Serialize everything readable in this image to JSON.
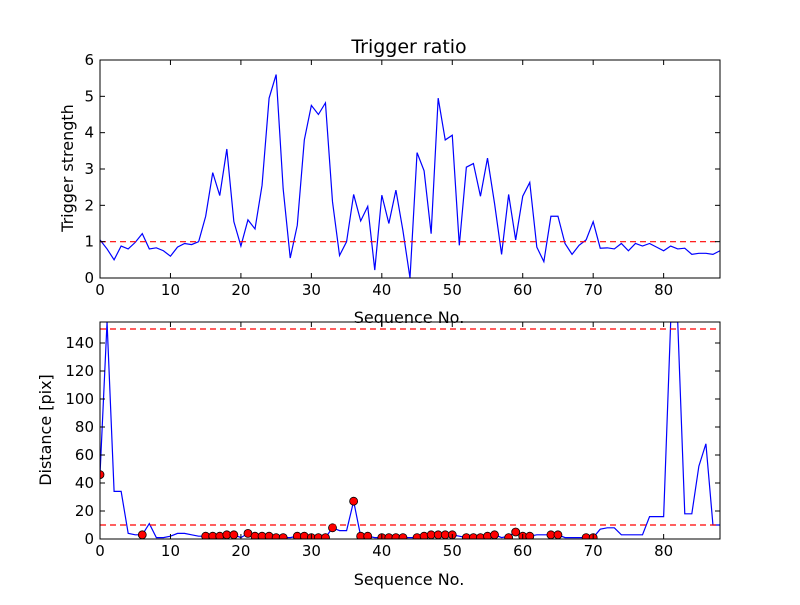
{
  "chart_data": [
    {
      "type": "line",
      "title": "Trigger ratio",
      "xlabel": "Sequence No.",
      "ylabel": "Trigger strength",
      "xlim": [
        0,
        88
      ],
      "ylim": [
        0,
        6
      ],
      "xticks": [
        0,
        10,
        20,
        30,
        40,
        50,
        60,
        70,
        80
      ],
      "yticks": [
        0,
        1,
        2,
        3,
        4,
        5,
        6
      ],
      "grid": false,
      "series": [
        {
          "color": "#0000ff",
          "x": [
            0,
            1,
            2,
            3,
            4,
            5,
            6,
            7,
            8,
            9,
            10,
            11,
            12,
            13,
            14,
            15,
            16,
            17,
            18,
            19,
            20,
            21,
            22,
            23,
            24,
            25,
            26,
            27,
            28,
            29,
            30,
            31,
            32,
            33,
            34,
            35,
            36,
            37,
            38,
            39,
            40,
            41,
            42,
            43,
            44,
            45,
            46,
            47,
            48,
            49,
            50,
            51,
            52,
            53,
            54,
            55,
            56,
            57,
            58,
            59,
            60,
            61,
            62,
            63,
            64,
            65,
            66,
            67,
            68,
            69,
            70,
            71,
            72,
            73,
            74,
            75,
            76,
            77,
            78,
            79,
            80,
            81,
            82,
            83,
            84,
            85,
            86,
            87,
            88
          ],
          "y": [
            1.05,
            0.8,
            0.5,
            0.88,
            0.8,
            0.98,
            1.22,
            0.8,
            0.83,
            0.75,
            0.6,
            0.85,
            0.95,
            0.92,
            1.0,
            1.7,
            2.9,
            2.27,
            3.55,
            1.55,
            0.88,
            1.6,
            1.35,
            2.55,
            4.95,
            5.6,
            2.45,
            0.55,
            1.45,
            3.8,
            4.75,
            4.5,
            4.82,
            2.1,
            0.62,
            1.0,
            2.3,
            1.57,
            1.97,
            0.22,
            2.28,
            1.5,
            2.42,
            1.3,
            0.0,
            3.45,
            2.95,
            1.22,
            4.95,
            3.8,
            3.93,
            0.9,
            3.05,
            3.15,
            2.25,
            3.3,
            2.05,
            0.65,
            2.3,
            1.05,
            2.25,
            2.63,
            0.85,
            0.45,
            1.7,
            1.7,
            0.95,
            0.65,
            0.9,
            1.05,
            1.55,
            0.82,
            0.83,
            0.8,
            0.95,
            0.75,
            0.95,
            0.88,
            0.95,
            0.85,
            0.75,
            0.88,
            0.8,
            0.82,
            0.65,
            0.68,
            0.68,
            0.65,
            0.75
          ]
        }
      ],
      "hlines": [
        {
          "y": 1.0,
          "color": "#ff0000",
          "style": "dashed"
        }
      ]
    },
    {
      "type": "line",
      "title": "",
      "xlabel": "Sequence No.",
      "ylabel": "Distance [pix]",
      "xlim": [
        0,
        88
      ],
      "ylim": [
        0,
        155
      ],
      "xticks": [
        0,
        10,
        20,
        30,
        40,
        50,
        60,
        70,
        80
      ],
      "yticks": [
        0,
        20,
        40,
        60,
        80,
        100,
        120,
        140
      ],
      "grid": false,
      "series": [
        {
          "color": "#0000ff",
          "x": [
            0,
            1,
            2,
            3,
            4,
            5,
            6,
            7,
            8,
            9,
            10,
            11,
            12,
            13,
            14,
            15,
            16,
            17,
            18,
            19,
            20,
            21,
            22,
            23,
            24,
            25,
            26,
            27,
            28,
            29,
            30,
            31,
            32,
            33,
            34,
            35,
            36,
            37,
            38,
            39,
            40,
            41,
            42,
            43,
            44,
            45,
            46,
            47,
            48,
            49,
            50,
            51,
            52,
            53,
            54,
            55,
            56,
            57,
            58,
            59,
            60,
            61,
            62,
            63,
            64,
            65,
            66,
            67,
            68,
            69,
            70,
            71,
            72,
            73,
            74,
            75,
            76,
            77,
            78,
            79,
            80,
            81,
            82,
            83,
            84,
            85,
            86,
            87,
            88
          ],
          "y": [
            46,
            155,
            34,
            34,
            4,
            3,
            3,
            11,
            1,
            1,
            2,
            4,
            4,
            3,
            2,
            2,
            2,
            3,
            3,
            3,
            1,
            4,
            2,
            2,
            2,
            1,
            1,
            1,
            2,
            2,
            1,
            1,
            1,
            8,
            6,
            6,
            27,
            2,
            2,
            1,
            1,
            1,
            1,
            1,
            1,
            1,
            2,
            3,
            3,
            3,
            3,
            2,
            1,
            1,
            1,
            2,
            3,
            1,
            2,
            5,
            2,
            2,
            3,
            3,
            3,
            3,
            1,
            1,
            1,
            1,
            1,
            7,
            8,
            8,
            3,
            3,
            3,
            3,
            16,
            16,
            16,
            155,
            155,
            18,
            18,
            52,
            68,
            10,
            10
          ]
        },
        {
          "color": "#ff0000",
          "marker": "circle",
          "x": [
            0,
            6,
            15,
            16,
            17,
            18,
            19,
            21,
            22,
            23,
            24,
            25,
            26,
            28,
            29,
            30,
            31,
            32,
            33,
            36,
            37,
            38,
            40,
            41,
            42,
            43,
            45,
            46,
            47,
            48,
            49,
            50,
            52,
            53,
            54,
            55,
            56,
            58,
            59,
            60,
            61,
            64,
            65,
            69,
            70
          ],
          "y": [
            46,
            3,
            2,
            2,
            2,
            3,
            3,
            4,
            2,
            2,
            2,
            1,
            1,
            2,
            2,
            1,
            1,
            1,
            8,
            27,
            2,
            2,
            1,
            1,
            1,
            1,
            1,
            2,
            3,
            3,
            3,
            3,
            1,
            1,
            1,
            2,
            3,
            1,
            5,
            2,
            2,
            3,
            3,
            1,
            1
          ]
        }
      ],
      "hlines": [
        {
          "y": 150,
          "color": "#ff0000",
          "style": "dashed"
        },
        {
          "y": 10,
          "color": "#ff0000",
          "style": "dashed"
        }
      ]
    }
  ]
}
